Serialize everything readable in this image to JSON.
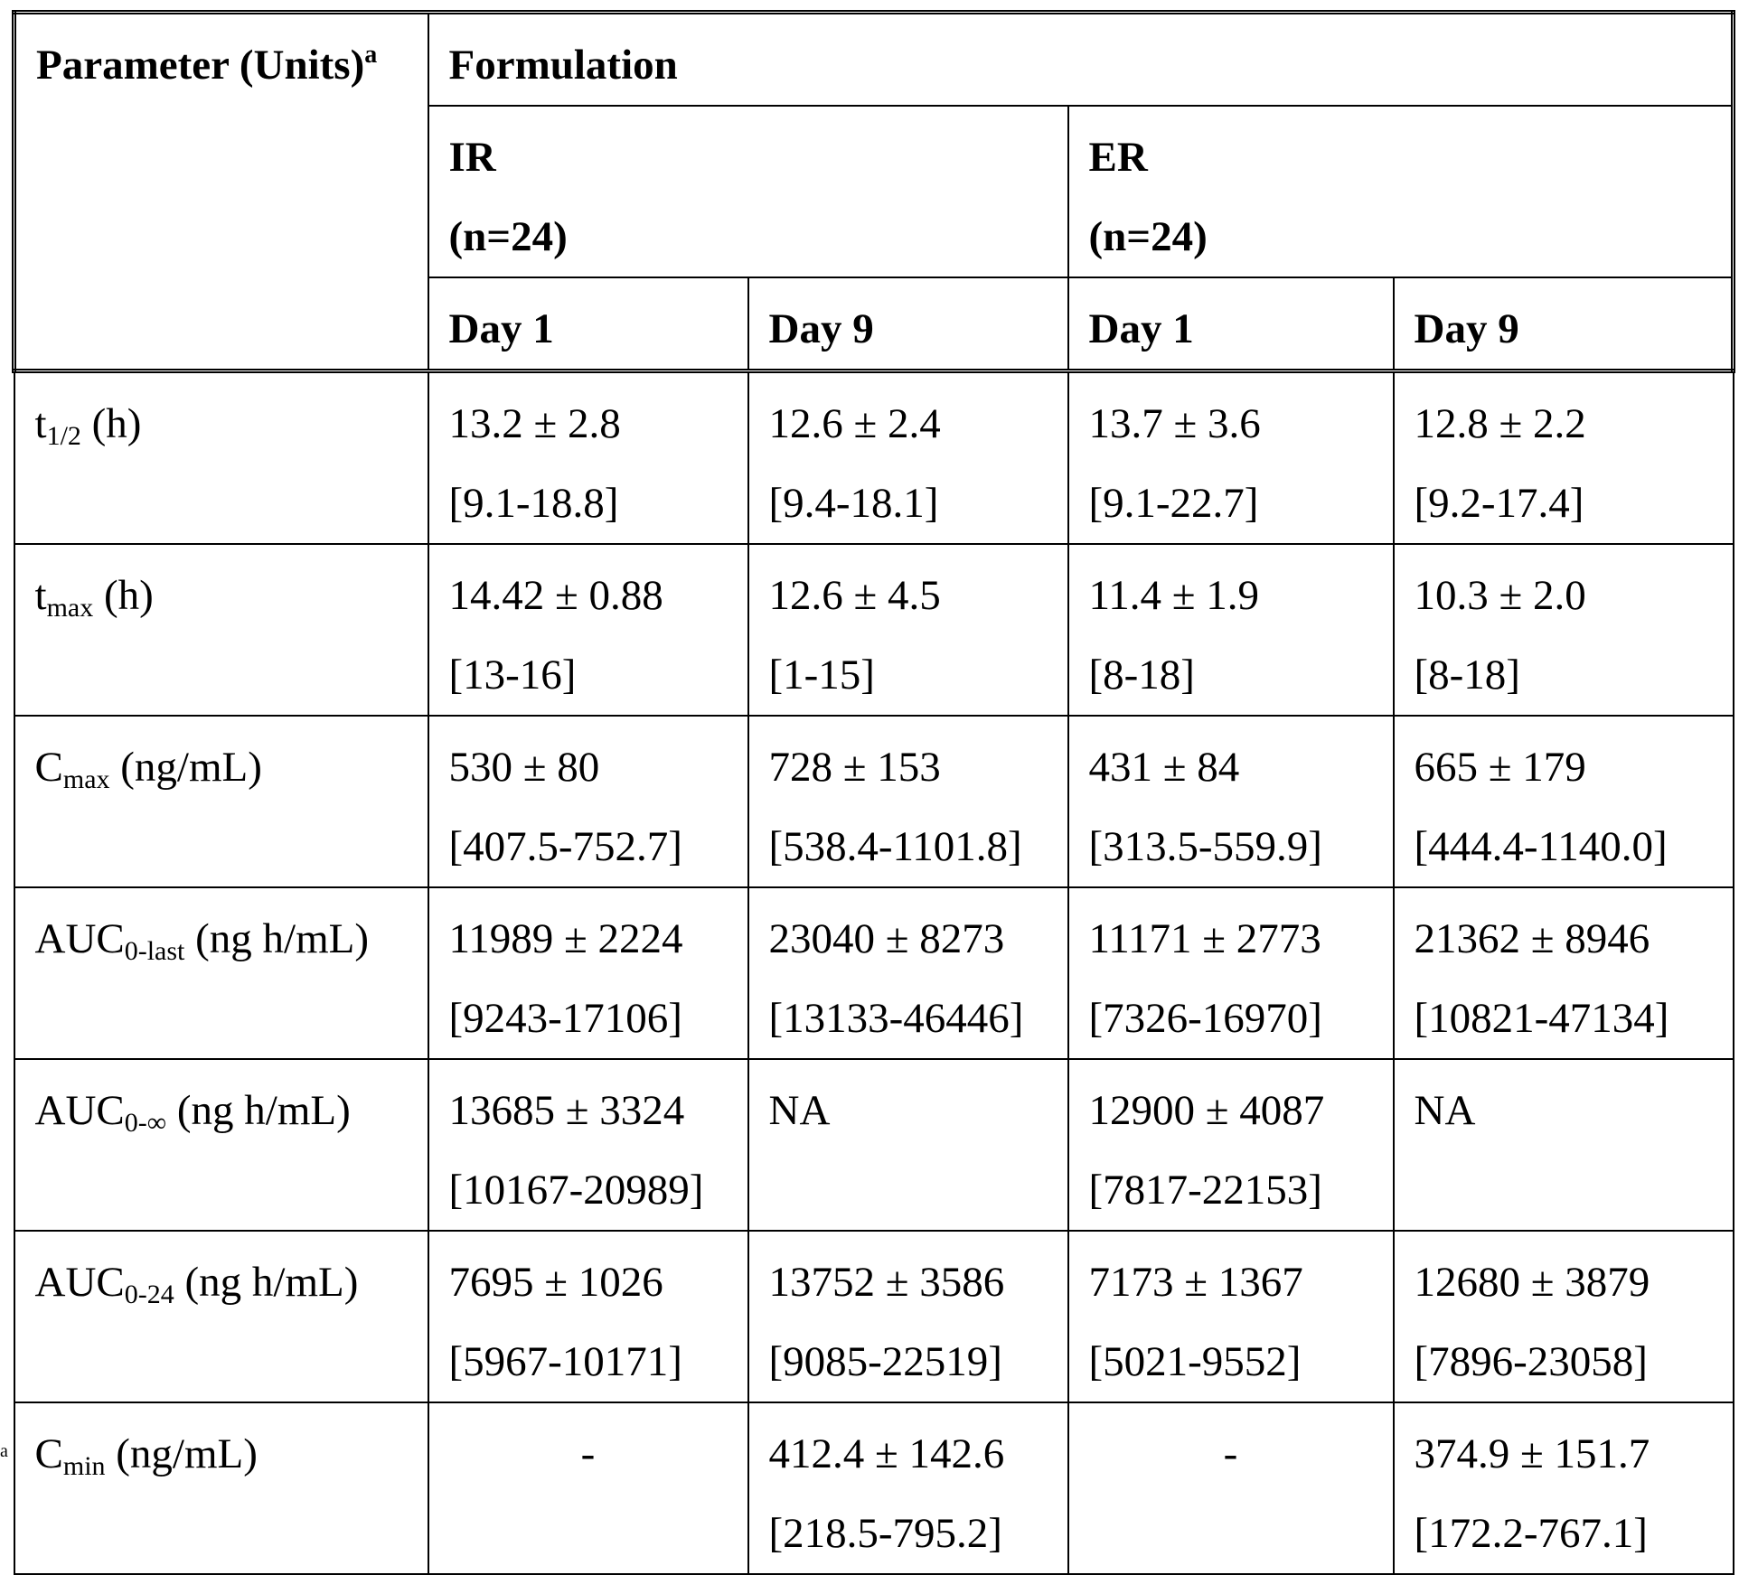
{
  "header": {
    "parameter_label": "Parameter (Units)",
    "parameter_sup": "a",
    "formulation_label": "Formulation",
    "groups": [
      {
        "name": "IR",
        "n": "(n=24)"
      },
      {
        "name": "ER",
        "n": "(n=24)"
      }
    ],
    "days": [
      "Day 1",
      "Day 9",
      "Day 1",
      "Day 9"
    ]
  },
  "rows": [
    {
      "param_main": "t",
      "param_sub": "1/2",
      "param_units": " (h)",
      "cells": [
        {
          "mean": "13.2 ± 2.8",
          "range": "[9.1-18.8]"
        },
        {
          "mean": "12.6 ± 2.4",
          "range": "[9.4-18.1]"
        },
        {
          "mean": "13.7 ± 3.6",
          "range": "[9.1-22.7]"
        },
        {
          "mean": "12.8 ± 2.2",
          "range": "[9.2-17.4]"
        }
      ]
    },
    {
      "param_main": "t",
      "param_sub": "max",
      "param_units": " (h)",
      "cells": [
        {
          "mean": "14.42 ± 0.88",
          "range": "[13-16]"
        },
        {
          "mean": "12.6 ± 4.5",
          "range": "[1-15]"
        },
        {
          "mean": "11.4 ± 1.9",
          "range": "[8-18]"
        },
        {
          "mean": "10.3 ± 2.0",
          "range": "[8-18]"
        }
      ]
    },
    {
      "param_main": "C",
      "param_sub": "max",
      "param_units": " (ng/mL)",
      "cells": [
        {
          "mean": "530 ± 80",
          "range": "[407.5-752.7]"
        },
        {
          "mean": "728 ± 153",
          "range": "[538.4-1101.8]"
        },
        {
          "mean": "431 ± 84",
          "range": "[313.5-559.9]"
        },
        {
          "mean": "665 ± 179",
          "range": "[444.4-1140.0]"
        }
      ]
    },
    {
      "param_main": "AUC",
      "param_sub": "0-last",
      "param_units": " (ng h/mL)",
      "cells": [
        {
          "mean": "11989 ± 2224",
          "range": "[9243-17106]"
        },
        {
          "mean": "23040 ± 8273",
          "range": "[13133-46446]"
        },
        {
          "mean": "11171 ± 2773",
          "range": "[7326-16970]"
        },
        {
          "mean": "21362 ± 8946",
          "range": "[10821-47134]"
        }
      ]
    },
    {
      "param_main": "AUC",
      "param_sub": "0-∞",
      "param_units": " (ng h/mL)",
      "cells": [
        {
          "mean": "13685 ± 3324",
          "range": "[10167-20989]"
        },
        {
          "mean": "NA",
          "range": ""
        },
        {
          "mean": "12900 ± 4087",
          "range": "[7817-22153]"
        },
        {
          "mean": "NA",
          "range": ""
        }
      ]
    },
    {
      "param_main": "AUC",
      "param_sub": "0-24",
      "param_units": " (ng h/mL)",
      "cells": [
        {
          "mean": "7695 ± 1026",
          "range": "[5967-10171]"
        },
        {
          "mean": "13752 ± 3586",
          "range": "[9085-22519]"
        },
        {
          "mean": "7173 ± 1367",
          "range": "[5021-9552]"
        },
        {
          "mean": "12680 ± 3879",
          "range": "[7896-23058]"
        }
      ]
    },
    {
      "param_main": "C",
      "param_sub": "min",
      "param_units": " (ng/mL)",
      "cells": [
        {
          "mean": "-",
          "range": "",
          "centered": true
        },
        {
          "mean": "412.4 ± 142.6",
          "range": "[218.5-795.2]"
        },
        {
          "mean": "-",
          "range": "",
          "centered": true
        },
        {
          "mean": "374.9 ± 151.7",
          "range": "[172.2-767.1]"
        }
      ]
    }
  ],
  "footnote_mark": "a"
}
